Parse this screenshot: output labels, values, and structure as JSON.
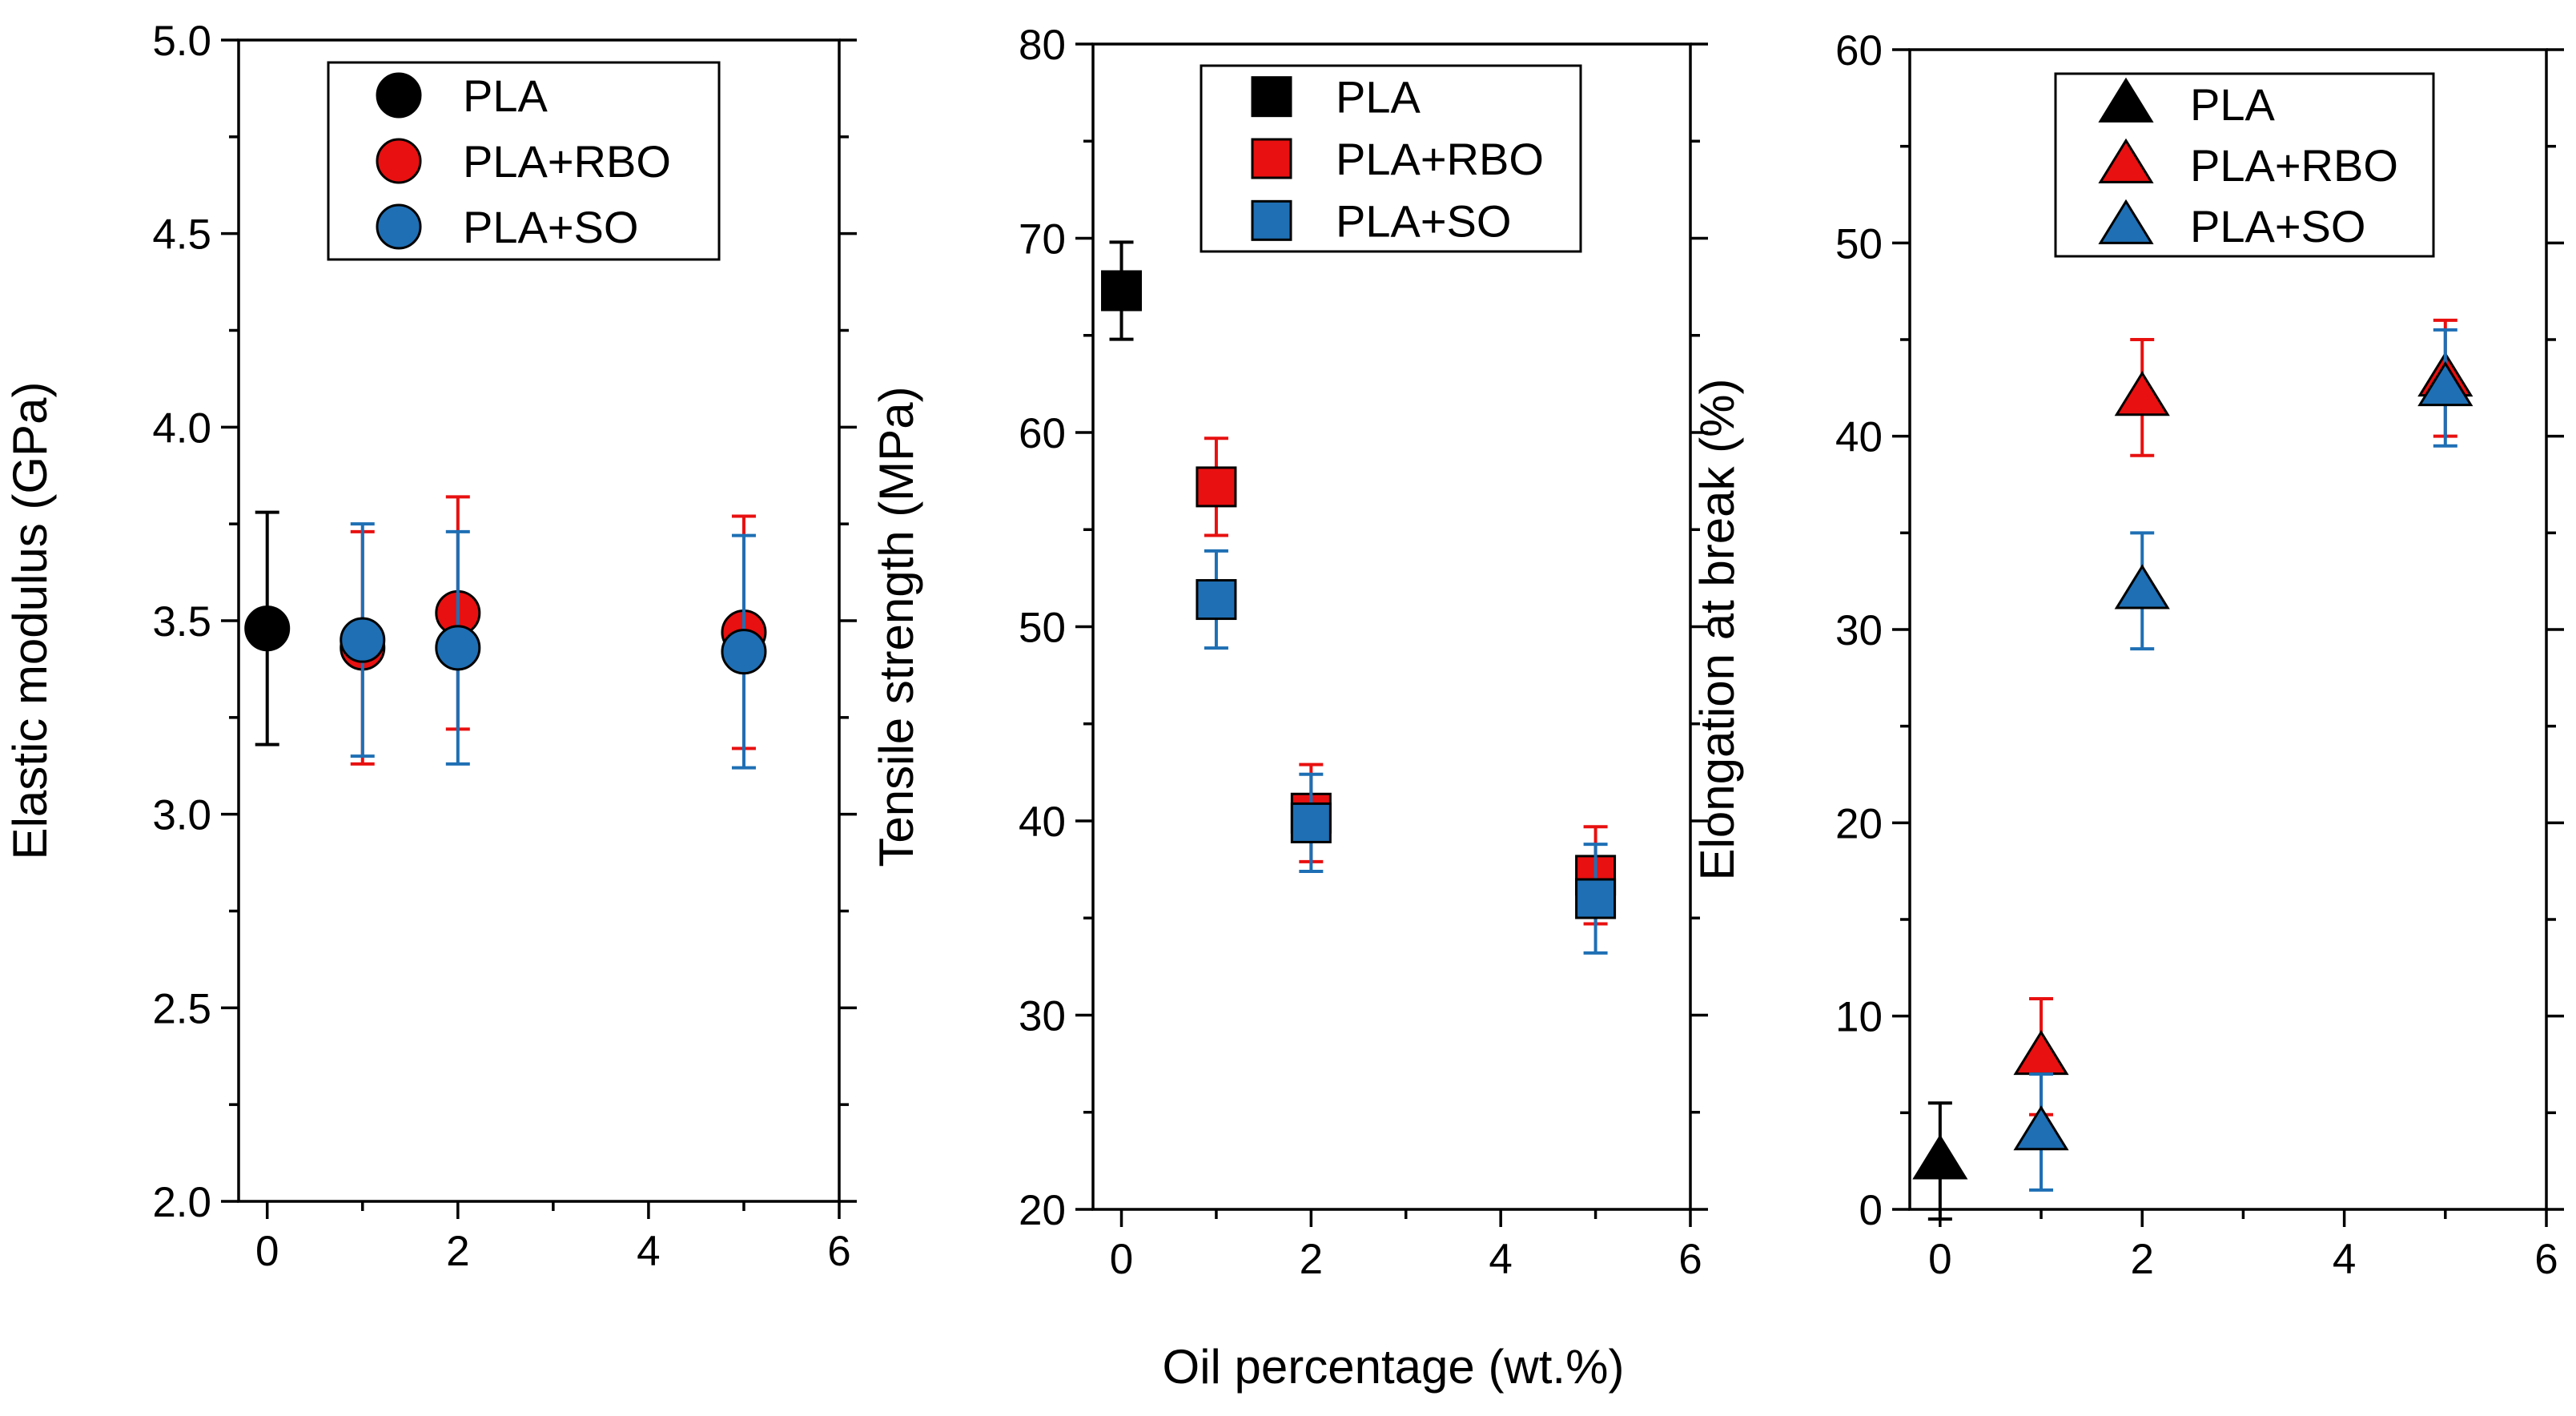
{
  "figure": {
    "shared_xlabel": "Oil percentage (wt.%)"
  },
  "colors": {
    "PLA": "#000000",
    "PLA+RBO": "#e81010",
    "PLA+SO": "#1e6fb4"
  },
  "chart_data": [
    {
      "type": "scatter",
      "title": "",
      "xlabel": "",
      "ylabel": "Elastic modulus (GPa)",
      "marker": "circle",
      "xlim": [
        -0.3,
        6
      ],
      "ylim": [
        2.0,
        5.0
      ],
      "xticks": [
        0,
        2,
        4,
        6
      ],
      "yticks": [
        2.0,
        2.5,
        3.0,
        3.5,
        4.0,
        4.5,
        5.0
      ],
      "tick_format": "1",
      "legend_position": "top-center",
      "series": [
        {
          "name": "PLA",
          "x": [
            0
          ],
          "y": [
            3.48
          ],
          "err": [
            0.3
          ]
        },
        {
          "name": "PLA+RBO",
          "x": [
            1,
            2,
            5
          ],
          "y": [
            3.43,
            3.52,
            3.47
          ],
          "err": [
            0.3,
            0.3,
            0.3
          ]
        },
        {
          "name": "PLA+SO",
          "x": [
            1,
            2,
            5
          ],
          "y": [
            3.45,
            3.43,
            3.42
          ],
          "err": [
            0.3,
            0.3,
            0.3
          ]
        }
      ]
    },
    {
      "type": "scatter",
      "title": "",
      "xlabel": "Oil percentage (wt.%)",
      "ylabel": "Tensile strength (MPa)",
      "marker": "square",
      "xlim": [
        -0.3,
        6
      ],
      "ylim": [
        20,
        80
      ],
      "xticks": [
        0,
        2,
        4,
        6
      ],
      "yticks": [
        20,
        30,
        40,
        50,
        60,
        70,
        80
      ],
      "tick_format": "0",
      "legend_position": "top-center",
      "series": [
        {
          "name": "PLA",
          "x": [
            0
          ],
          "y": [
            67.3
          ],
          "err": [
            2.5
          ]
        },
        {
          "name": "PLA+RBO",
          "x": [
            1,
            2,
            5
          ],
          "y": [
            57.2,
            40.4,
            37.2
          ],
          "err": [
            2.5,
            2.5,
            2.5
          ]
        },
        {
          "name": "PLA+SO",
          "x": [
            1,
            2,
            5
          ],
          "y": [
            51.4,
            39.9,
            36.0
          ],
          "err": [
            2.5,
            2.5,
            2.8
          ]
        }
      ]
    },
    {
      "type": "scatter",
      "title": "",
      "xlabel": "",
      "ylabel": "Elongation at break (%)",
      "marker": "triangle",
      "xlim": [
        -0.3,
        6
      ],
      "ylim": [
        0,
        60
      ],
      "xticks": [
        0,
        2,
        4,
        6
      ],
      "yticks": [
        0,
        10,
        20,
        30,
        40,
        50,
        60
      ],
      "tick_format": "0",
      "legend_position": "top-right",
      "series": [
        {
          "name": "PLA",
          "x": [
            0
          ],
          "y": [
            2.5
          ],
          "err": [
            3.0
          ]
        },
        {
          "name": "PLA+RBO",
          "x": [
            1,
            2,
            5
          ],
          "y": [
            7.9,
            42.0,
            43.0
          ],
          "err": [
            3.0,
            3.0,
            3.0
          ]
        },
        {
          "name": "PLA+SO",
          "x": [
            1,
            2,
            5
          ],
          "y": [
            4.0,
            32.0,
            42.5
          ],
          "err": [
            3.0,
            3.0,
            3.0
          ]
        }
      ]
    }
  ]
}
